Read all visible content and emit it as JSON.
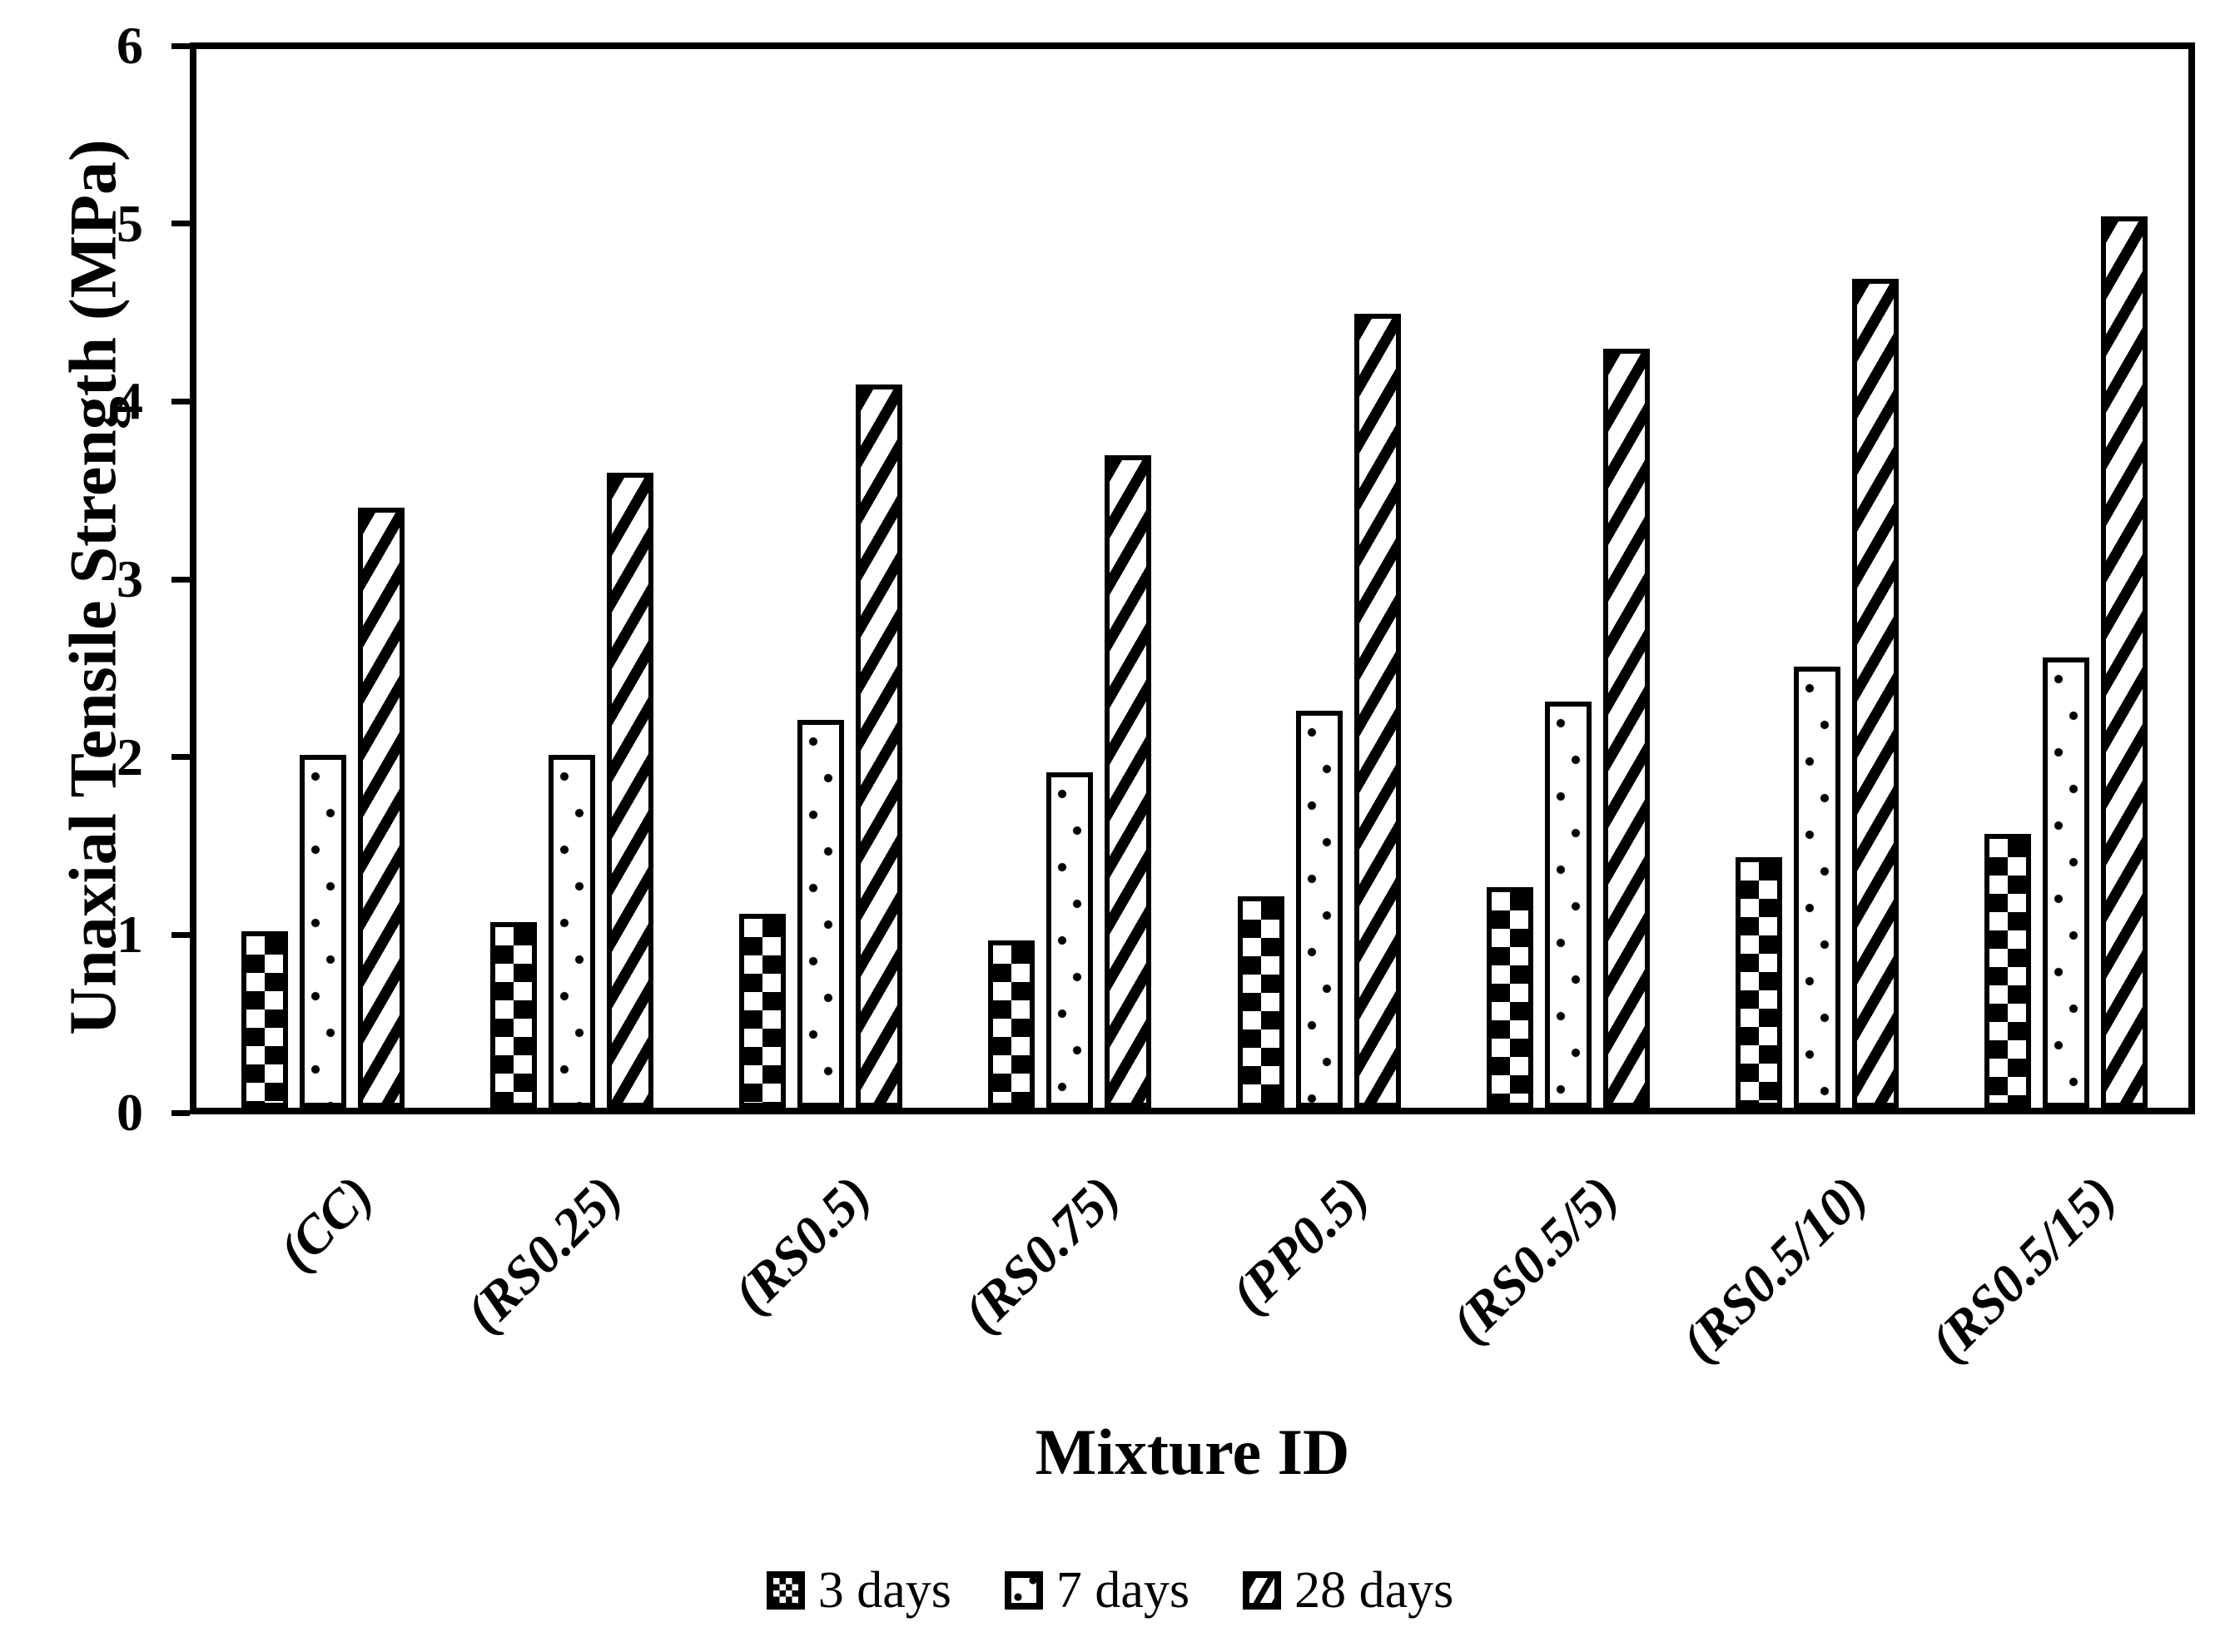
{
  "chart_data": {
    "type": "bar",
    "title": "",
    "xlabel": "Mixture ID",
    "ylabel": "Unaxial Tensile Strength (MPa)",
    "categories": [
      "(CC)",
      "(RS0.25)",
      "(RS0.5)",
      "(RS0.75)",
      "(PP0.5)",
      "(RS0.5/5)",
      "(RS0.5/10)",
      "(RS0.5/15)"
    ],
    "series": [
      {
        "name": "3 days",
        "pattern": "checkerboard",
        "values": [
          1.0,
          1.05,
          1.1,
          0.95,
          1.2,
          1.25,
          1.42,
          1.55
        ]
      },
      {
        "name": "7 days",
        "pattern": "dots",
        "values": [
          2.0,
          2.0,
          2.2,
          1.9,
          2.25,
          2.3,
          2.5,
          2.55
        ]
      },
      {
        "name": "28 days",
        "pattern": "diagonal-stripes",
        "values": [
          3.4,
          3.6,
          4.1,
          3.7,
          4.5,
          4.3,
          4.7,
          5.05
        ]
      }
    ],
    "ylim": [
      0,
      6
    ],
    "yticks": [
      0,
      1,
      2,
      3,
      4,
      5,
      6
    ],
    "grid": "off",
    "legend_position": "bottom-center",
    "bar_fill_color": "#ffffff",
    "bar_edge_color": "#000000",
    "axis_color": "#000000"
  },
  "legend": {
    "items": [
      "3 days",
      "7 days",
      "28 days"
    ]
  }
}
